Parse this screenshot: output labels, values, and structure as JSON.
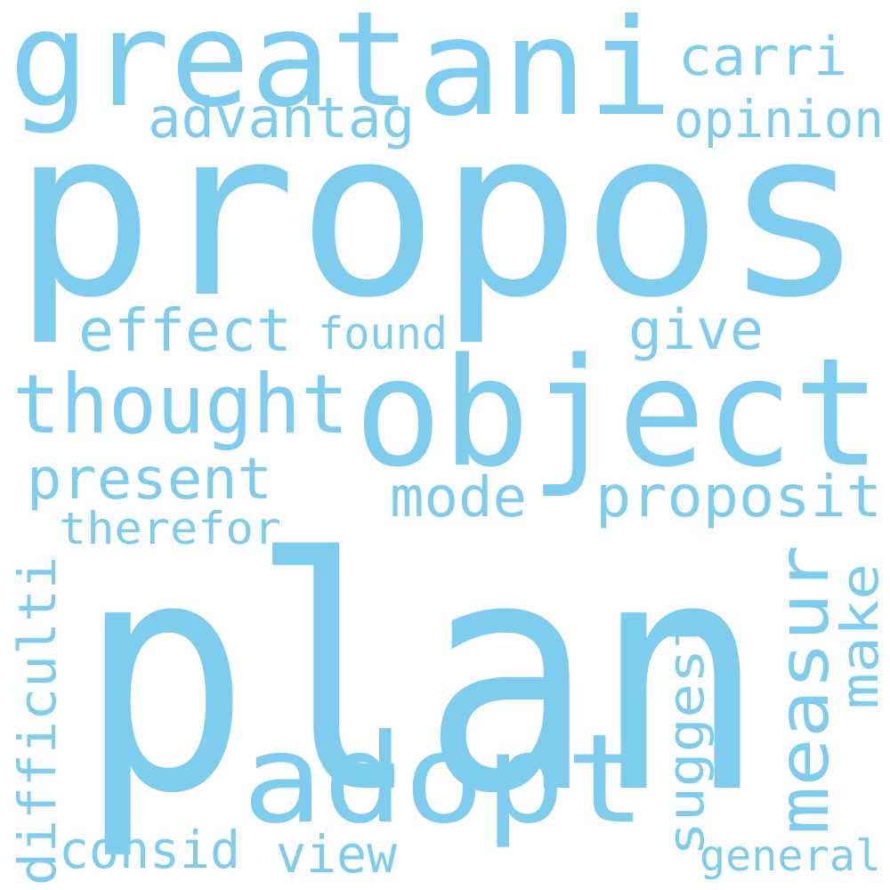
{
  "colors": {
    "background": "#ffffff",
    "word": "#7ecdef"
  },
  "words": [
    {
      "id": "plan",
      "text": "plan"
    },
    {
      "id": "propos",
      "text": "propos"
    },
    {
      "id": "object",
      "text": "object"
    },
    {
      "id": "great",
      "text": "great"
    },
    {
      "id": "ani",
      "text": "ani"
    },
    {
      "id": "adopt",
      "text": "adopt"
    },
    {
      "id": "thought",
      "text": "thought"
    },
    {
      "id": "measur",
      "text": "measur"
    },
    {
      "id": "advantag",
      "text": "advantag"
    },
    {
      "id": "opinion",
      "text": "opinion"
    },
    {
      "id": "carri",
      "text": "carri"
    },
    {
      "id": "effect",
      "text": "effect"
    },
    {
      "id": "found",
      "text": "found"
    },
    {
      "id": "give",
      "text": "give"
    },
    {
      "id": "present",
      "text": "present"
    },
    {
      "id": "mode",
      "text": "mode"
    },
    {
      "id": "proposit",
      "text": "proposit"
    },
    {
      "id": "therefor",
      "text": "therefor"
    },
    {
      "id": "difficulti",
      "text": "difficulti"
    },
    {
      "id": "make",
      "text": "make"
    },
    {
      "id": "suggest",
      "text": "suggest"
    },
    {
      "id": "consid",
      "text": "consid"
    },
    {
      "id": "view",
      "text": "view"
    },
    {
      "id": "general",
      "text": "general"
    }
  ]
}
